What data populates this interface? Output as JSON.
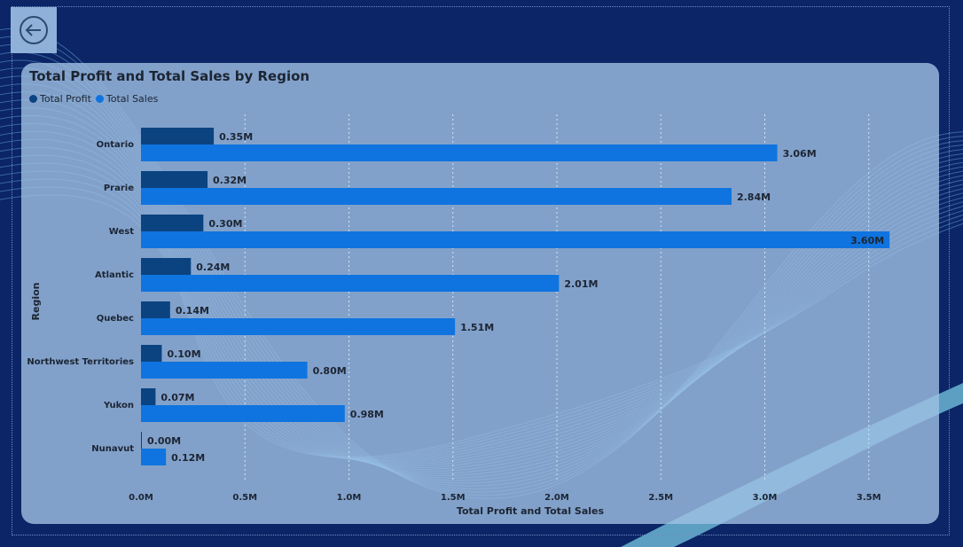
{
  "colors": {
    "background": "#0b2566",
    "card": "#a0c0e4",
    "profit": "#0b4380",
    "sales": "#0f74df",
    "text": "#1c2533"
  },
  "back_button": {
    "icon": "back-arrow-icon"
  },
  "chart_data": {
    "type": "bar",
    "orientation": "horizontal",
    "title": "Total Profit and Total Sales by Region",
    "xlabel": "Total Profit and Total Sales",
    "ylabel": "Region",
    "legend_position": "top-left",
    "grid": true,
    "xlim": [
      0,
      3.6
    ],
    "xticks": [
      "0.0M",
      "0.5M",
      "1.0M",
      "1.5M",
      "2.0M",
      "2.5M",
      "3.0M",
      "3.5M"
    ],
    "categories": [
      "Ontario",
      "Prarie",
      "West",
      "Atlantic",
      "Quebec",
      "Northwest Territories",
      "Yukon",
      "Nunavut"
    ],
    "series": [
      {
        "name": "Total Profit",
        "values": [
          0.35,
          0.32,
          0.3,
          0.24,
          0.14,
          0.1,
          0.07,
          0.0
        ],
        "labels": [
          "0.35M",
          "0.32M",
          "0.30M",
          "0.24M",
          "0.14M",
          "0.10M",
          "0.07M",
          "0.00M"
        ]
      },
      {
        "name": "Total Sales",
        "values": [
          3.06,
          2.84,
          3.6,
          2.01,
          1.51,
          0.8,
          0.98,
          0.12
        ],
        "labels": [
          "3.06M",
          "2.84M",
          "3.60M",
          "2.01M",
          "1.51M",
          "0.80M",
          "0.98M",
          "0.12M"
        ]
      }
    ]
  }
}
